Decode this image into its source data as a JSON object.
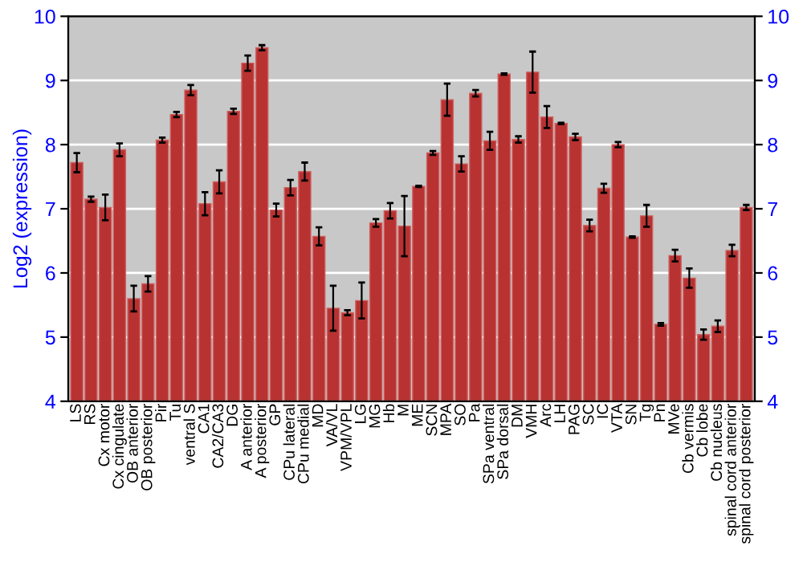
{
  "chart_data": {
    "type": "bar",
    "ylabel": "Log2 (expression)",
    "categories": [
      "LS",
      "RS",
      "Cx motor",
      "Cx cingulate",
      "OB anterior",
      "OB posterior",
      "Pir",
      "Tu",
      "ventral S",
      "CA1",
      "CA2/CA3",
      "DG",
      "A anterior",
      "A posterior",
      "GP",
      "CPu lateral",
      "CPu medial",
      "MD",
      "VA/VL",
      "VPM/VPL",
      "LG",
      "MG",
      "Hb",
      "M",
      "ME",
      "SCN",
      "MPA",
      "SO",
      "Pa",
      "SPa ventral",
      "SPa dorsal",
      "DM",
      "VMH",
      "Arc",
      "LH",
      "PAG",
      "SC",
      "IC",
      "VTA",
      "SN",
      "Tg",
      "Pn",
      "MVe",
      "Cb vermis",
      "Cb lobe",
      "Cb nucleus",
      "spinal cord anterior",
      "spinal cord posterior"
    ],
    "values": [
      7.72,
      7.15,
      7.02,
      7.92,
      5.6,
      5.83,
      8.07,
      8.47,
      8.85,
      7.08,
      7.42,
      8.52,
      9.27,
      9.51,
      6.98,
      7.33,
      7.58,
      6.57,
      5.45,
      5.38,
      5.57,
      6.78,
      6.97,
      6.73,
      7.35,
      7.87,
      8.7,
      7.7,
      8.8,
      8.06,
      9.1,
      8.08,
      9.13,
      8.43,
      8.33,
      8.12,
      6.74,
      7.32,
      8.0,
      6.56,
      6.89,
      5.2,
      6.27,
      5.92,
      5.04,
      5.17,
      6.35,
      7.02
    ],
    "errors": [
      0.15,
      0.04,
      0.2,
      0.1,
      0.2,
      0.12,
      0.04,
      0.04,
      0.08,
      0.18,
      0.18,
      0.04,
      0.12,
      0.04,
      0.1,
      0.12,
      0.14,
      0.14,
      0.35,
      0.04,
      0.28,
      0.06,
      0.12,
      0.47,
      0.01,
      0.03,
      0.25,
      0.12,
      0.05,
      0.14,
      0.01,
      0.05,
      0.32,
      0.17,
      0.01,
      0.05,
      0.09,
      0.07,
      0.04,
      0.01,
      0.17,
      0.02,
      0.09,
      0.15,
      0.08,
      0.09,
      0.09,
      0.04
    ],
    "color": "#b83232",
    "ylim": [
      4,
      10
    ],
    "yticks": [
      4,
      5,
      6,
      7,
      8,
      9,
      10
    ],
    "y2lim": [
      4,
      10
    ],
    "y2ticks": [
      4,
      5,
      6,
      7,
      8,
      9,
      10
    ],
    "grid": "y"
  }
}
